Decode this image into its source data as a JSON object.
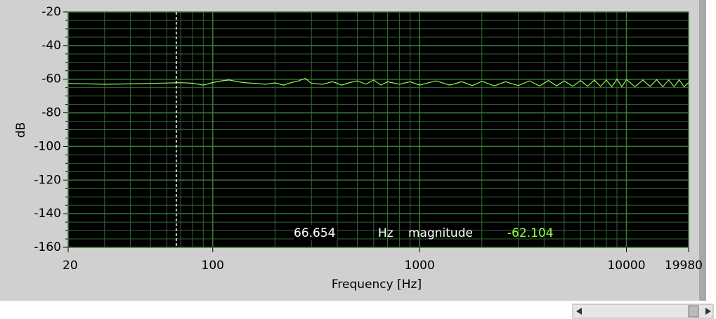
{
  "chart_data": {
    "type": "line",
    "ylabel": "dB",
    "xlabel": "Frequency [Hz]",
    "xscale": "log",
    "grid": true,
    "xlim": [
      20,
      19980
    ],
    "ylim": [
      -160,
      -20
    ],
    "xticks": [
      20,
      100,
      1000,
      10000,
      19980
    ],
    "yticks": [
      -20,
      -40,
      -60,
      -80,
      -100,
      -120,
      -140,
      -160
    ],
    "x_minor_grid": [
      30,
      40,
      50,
      60,
      70,
      80,
      90,
      200,
      300,
      400,
      500,
      600,
      700,
      800,
      900,
      2000,
      3000,
      4000,
      5000,
      6000,
      7000,
      8000,
      9000
    ],
    "y_minor_grid": [
      -25,
      -30,
      -35,
      -45,
      -50,
      -55,
      -65,
      -70,
      -75,
      -85,
      -90,
      -95,
      -105,
      -110,
      -115,
      -125,
      -130,
      -135,
      -145,
      -150,
      -155
    ],
    "x": [
      20,
      30,
      40,
      50,
      60,
      70,
      80,
      90,
      100,
      110,
      120,
      140,
      160,
      180,
      200,
      220,
      240,
      260,
      280,
      300,
      340,
      380,
      420,
      460,
      500,
      550,
      600,
      650,
      700,
      800,
      900,
      1000,
      1200,
      1400,
      1600,
      1800,
      2000,
      2300,
      2600,
      3000,
      3400,
      3800,
      4200,
      4600,
      5000,
      5500,
      6000,
      6500,
      7000,
      7500,
      8000,
      8500,
      9000,
      9500,
      10000,
      11000,
      12000,
      13000,
      14000,
      15000,
      16000,
      17000,
      18000,
      19000,
      19980
    ],
    "series": [
      {
        "name": "magnitude",
        "color": "#8cff4a",
        "values": [
          -62.5,
          -63,
          -62.8,
          -62.5,
          -62.3,
          -62.1,
          -62.4,
          -63.5,
          -62,
          -61,
          -60.5,
          -62,
          -62.5,
          -63,
          -62.2,
          -63.5,
          -62,
          -61,
          -59.5,
          -62.5,
          -63,
          -61.5,
          -63.5,
          -62,
          -61,
          -63,
          -60.5,
          -63.5,
          -61.5,
          -63,
          -61.5,
          -63.5,
          -61,
          -63.5,
          -61.5,
          -63.8,
          -61.2,
          -64,
          -61.5,
          -63.8,
          -61,
          -64,
          -60.8,
          -64,
          -61,
          -64.2,
          -60.8,
          -64.2,
          -60.5,
          -64.3,
          -60.5,
          -64.5,
          -60,
          -64.5,
          -60.2,
          -64.5,
          -60.5,
          -64.3,
          -60.3,
          -64.5,
          -60.5,
          -64.4,
          -60.4,
          -64.5,
          -62
        ]
      }
    ],
    "cursor": {
      "x": 66.654,
      "unit": "Hz",
      "name": "magnitude",
      "y": -62.104
    }
  }
}
